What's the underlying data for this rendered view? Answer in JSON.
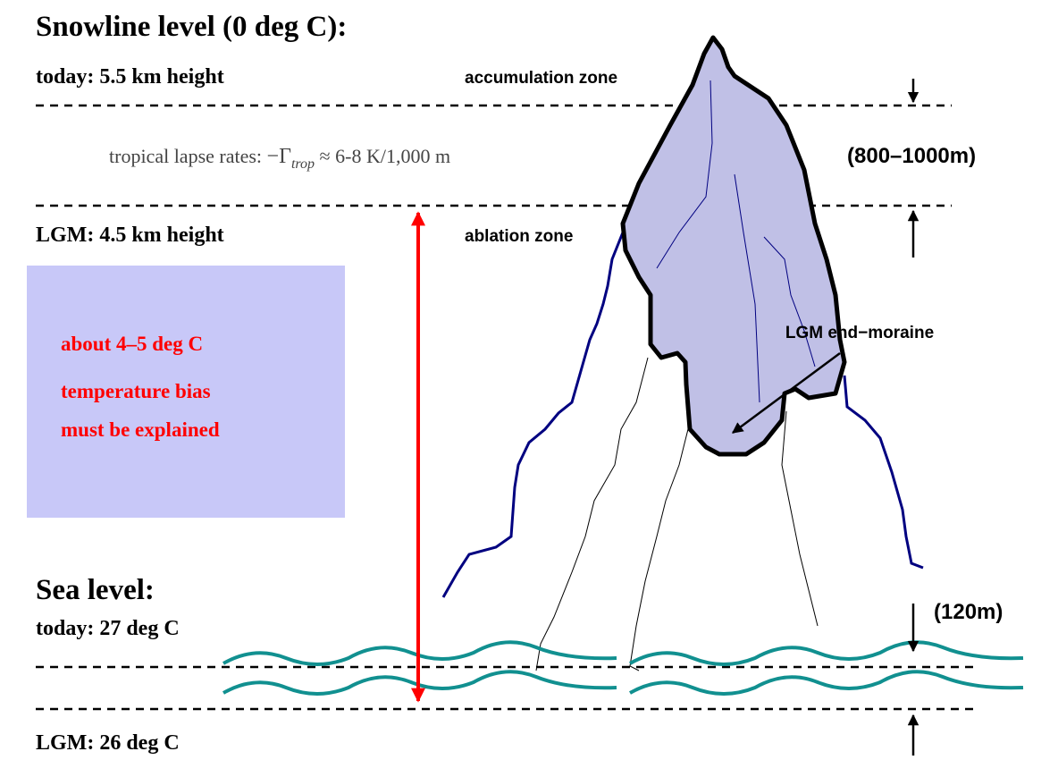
{
  "title": "Snowline level (0 deg C):",
  "snowline": {
    "today": "today: 5.5 km height",
    "lgm": "LGM: 4.5 km height",
    "difference": "(800–1000m)"
  },
  "zones": {
    "accumulation": "accumulation zone",
    "ablation": "ablation zone"
  },
  "lapse_rate": {
    "prefix": "tropical lapse rates:",
    "symbol": "−Γ",
    "subscript": "trop",
    "rest": "≈ 6-8 K/1,000 m"
  },
  "bias_box": {
    "lines": [
      "about 4–5 deg C",
      "temperature bias",
      "must be explained"
    ]
  },
  "moraine_label": "LGM end−moraine",
  "sea_level": {
    "title": "Sea level:",
    "today": "today: 27 deg C",
    "lgm": "LGM: 26 deg C",
    "difference": "(120m)"
  }
}
